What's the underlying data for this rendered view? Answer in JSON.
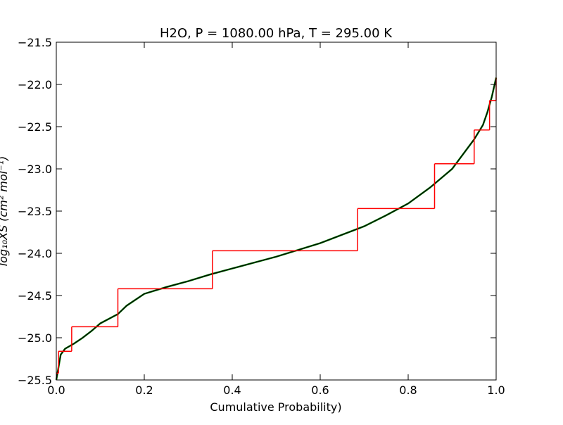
{
  "chart_data": {
    "type": "line",
    "title": "H2O, P = 1080.00 hPa, T = 295.00 K",
    "x_label": "Cumulative Probability)",
    "y_label": "log₁₀XS (cm² mol⁻¹)",
    "xlim": [
      0,
      1
    ],
    "ylim": [
      -25.5,
      -21.5
    ],
    "xticks": [
      {
        "value": 0,
        "label": "0.0"
      },
      {
        "value": 0.2,
        "label": "0.2"
      },
      {
        "value": 0.4,
        "label": "0.4"
      },
      {
        "value": 0.6,
        "label": "0.6"
      },
      {
        "value": 0.8,
        "label": "0.8"
      },
      {
        "value": 1,
        "label": "1.0"
      }
    ],
    "yticks": [
      {
        "value": -25.5,
        "label": "−25.5"
      },
      {
        "value": -25,
        "label": "−25.0"
      },
      {
        "value": -24.5,
        "label": "−24.5"
      },
      {
        "value": -24,
        "label": "−24.0"
      },
      {
        "value": -23.5,
        "label": "−23.5"
      },
      {
        "value": -23,
        "label": "−23.0"
      },
      {
        "value": -22.5,
        "label": "−22.5"
      },
      {
        "value": -22,
        "label": "−22.0"
      },
      {
        "value": -21.5,
        "label": "−21.5"
      }
    ],
    "series": [
      {
        "color": "#008000",
        "drawstyle": "default",
        "x": [
          0,
          0.005,
          0.01,
          0.02,
          0.04,
          0.06,
          0.08,
          0.1,
          0.14,
          0.16,
          0.2,
          0.25,
          0.3,
          0.35,
          0.4,
          0.45,
          0.5,
          0.55,
          0.6,
          0.65,
          0.7,
          0.75,
          0.8,
          0.85,
          0.9,
          0.95,
          0.97,
          0.98,
          0.99,
          1
        ],
        "values": [
          -25.5,
          -25.35,
          -25.2,
          -25.13,
          -25.07,
          -25.0,
          -24.92,
          -24.83,
          -24.72,
          -24.62,
          -24.48,
          -24.4,
          -24.33,
          -24.25,
          -24.18,
          -24.11,
          -24.04,
          -23.96,
          -23.88,
          -23.78,
          -23.68,
          -23.55,
          -23.41,
          -23.22,
          -23.0,
          -22.65,
          -22.48,
          -22.33,
          -22.15,
          -21.92
        ]
      },
      {
        "color": "#000000",
        "drawstyle": "default",
        "x": [
          0,
          0.005,
          0.01,
          0.02,
          0.04,
          0.06,
          0.08,
          0.1,
          0.14,
          0.16,
          0.2,
          0.25,
          0.3,
          0.35,
          0.4,
          0.45,
          0.5,
          0.55,
          0.6,
          0.65,
          0.7,
          0.75,
          0.8,
          0.85,
          0.9,
          0.95,
          0.97,
          0.98,
          0.99,
          1
        ],
        "values": [
          -25.5,
          -25.35,
          -25.2,
          -25.13,
          -25.07,
          -25.0,
          -24.92,
          -24.83,
          -24.72,
          -24.62,
          -24.48,
          -24.4,
          -24.33,
          -24.25,
          -24.18,
          -24.11,
          -24.04,
          -23.96,
          -23.88,
          -23.78,
          -23.68,
          -23.55,
          -23.41,
          -23.22,
          -23.0,
          -22.65,
          -22.48,
          -22.33,
          -22.15,
          -21.92
        ]
      },
      {
        "color": "#ff0000",
        "drawstyle": "steps-post",
        "x": [
          0,
          0.005,
          0.035,
          0.14,
          0.355,
          0.685,
          0.86,
          0.95,
          0.985,
          1
        ],
        "values": [
          -25.42,
          -25.16,
          -24.87,
          -24.42,
          -23.97,
          -23.47,
          -22.94,
          -22.54,
          -22.19,
          -21.92
        ]
      }
    ]
  }
}
